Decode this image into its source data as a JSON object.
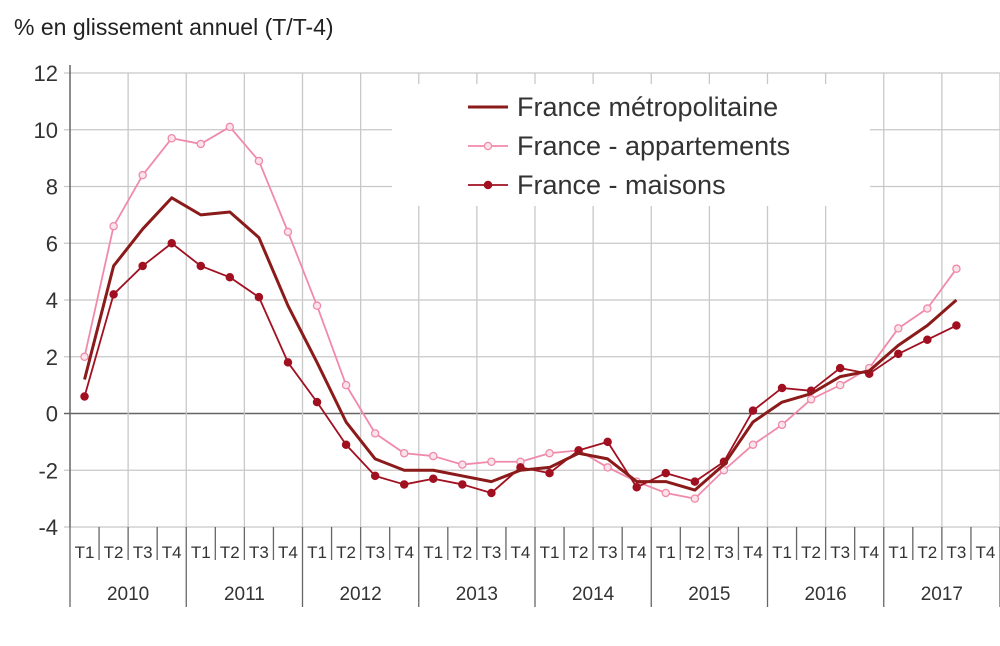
{
  "chart_data": {
    "type": "line",
    "title": "",
    "ylabel": "% en glissement annuel (T/T-4)",
    "xlabel": "",
    "ylim": [
      -4,
      12
    ],
    "yticks": [
      -4,
      -2,
      0,
      2,
      4,
      6,
      8,
      10,
      12
    ],
    "grid": true,
    "legend_position": "top-center",
    "quarters": [
      "T1",
      "T2",
      "T3",
      "T4"
    ],
    "years": [
      "2010",
      "2011",
      "2012",
      "2013",
      "2014",
      "2015",
      "2016",
      "2017"
    ],
    "series": [
      {
        "name": "France métropolitaine",
        "color": "#8b1a1a",
        "marker": "none",
        "values": [
          1.2,
          5.2,
          6.5,
          7.6,
          7.0,
          7.1,
          6.2,
          3.8,
          1.8,
          -0.3,
          -1.6,
          -2.0,
          -2.0,
          -2.2,
          -2.4,
          -2.0,
          -1.9,
          -1.4,
          -1.6,
          -2.4,
          -2.4,
          -2.7,
          -1.8,
          -0.3,
          0.4,
          0.7,
          1.3,
          1.5,
          2.4,
          3.1,
          4.0
        ]
      },
      {
        "name": "France - appartements",
        "color": "#f08aaa",
        "marker": "open-circle",
        "values": [
          2.0,
          6.6,
          8.4,
          9.7,
          9.5,
          10.1,
          8.9,
          6.4,
          3.8,
          1.0,
          -0.7,
          -1.4,
          -1.5,
          -1.8,
          -1.7,
          -1.7,
          -1.4,
          -1.3,
          -1.9,
          -2.4,
          -2.8,
          -3.0,
          -2.0,
          -1.1,
          -0.4,
          0.5,
          1.0,
          1.6,
          3.0,
          3.7,
          5.1
        ]
      },
      {
        "name": "France - maisons",
        "color": "#a01020",
        "marker": "filled-circle",
        "values": [
          0.6,
          4.2,
          5.2,
          6.0,
          5.2,
          4.8,
          4.1,
          1.8,
          0.4,
          -1.1,
          -2.2,
          -2.5,
          -2.3,
          -2.5,
          -2.8,
          -1.9,
          -2.1,
          -1.3,
          -1.0,
          -2.6,
          -2.1,
          -2.4,
          -1.7,
          0.1,
          0.9,
          0.8,
          1.6,
          1.4,
          2.1,
          2.6,
          3.1
        ]
      }
    ]
  }
}
